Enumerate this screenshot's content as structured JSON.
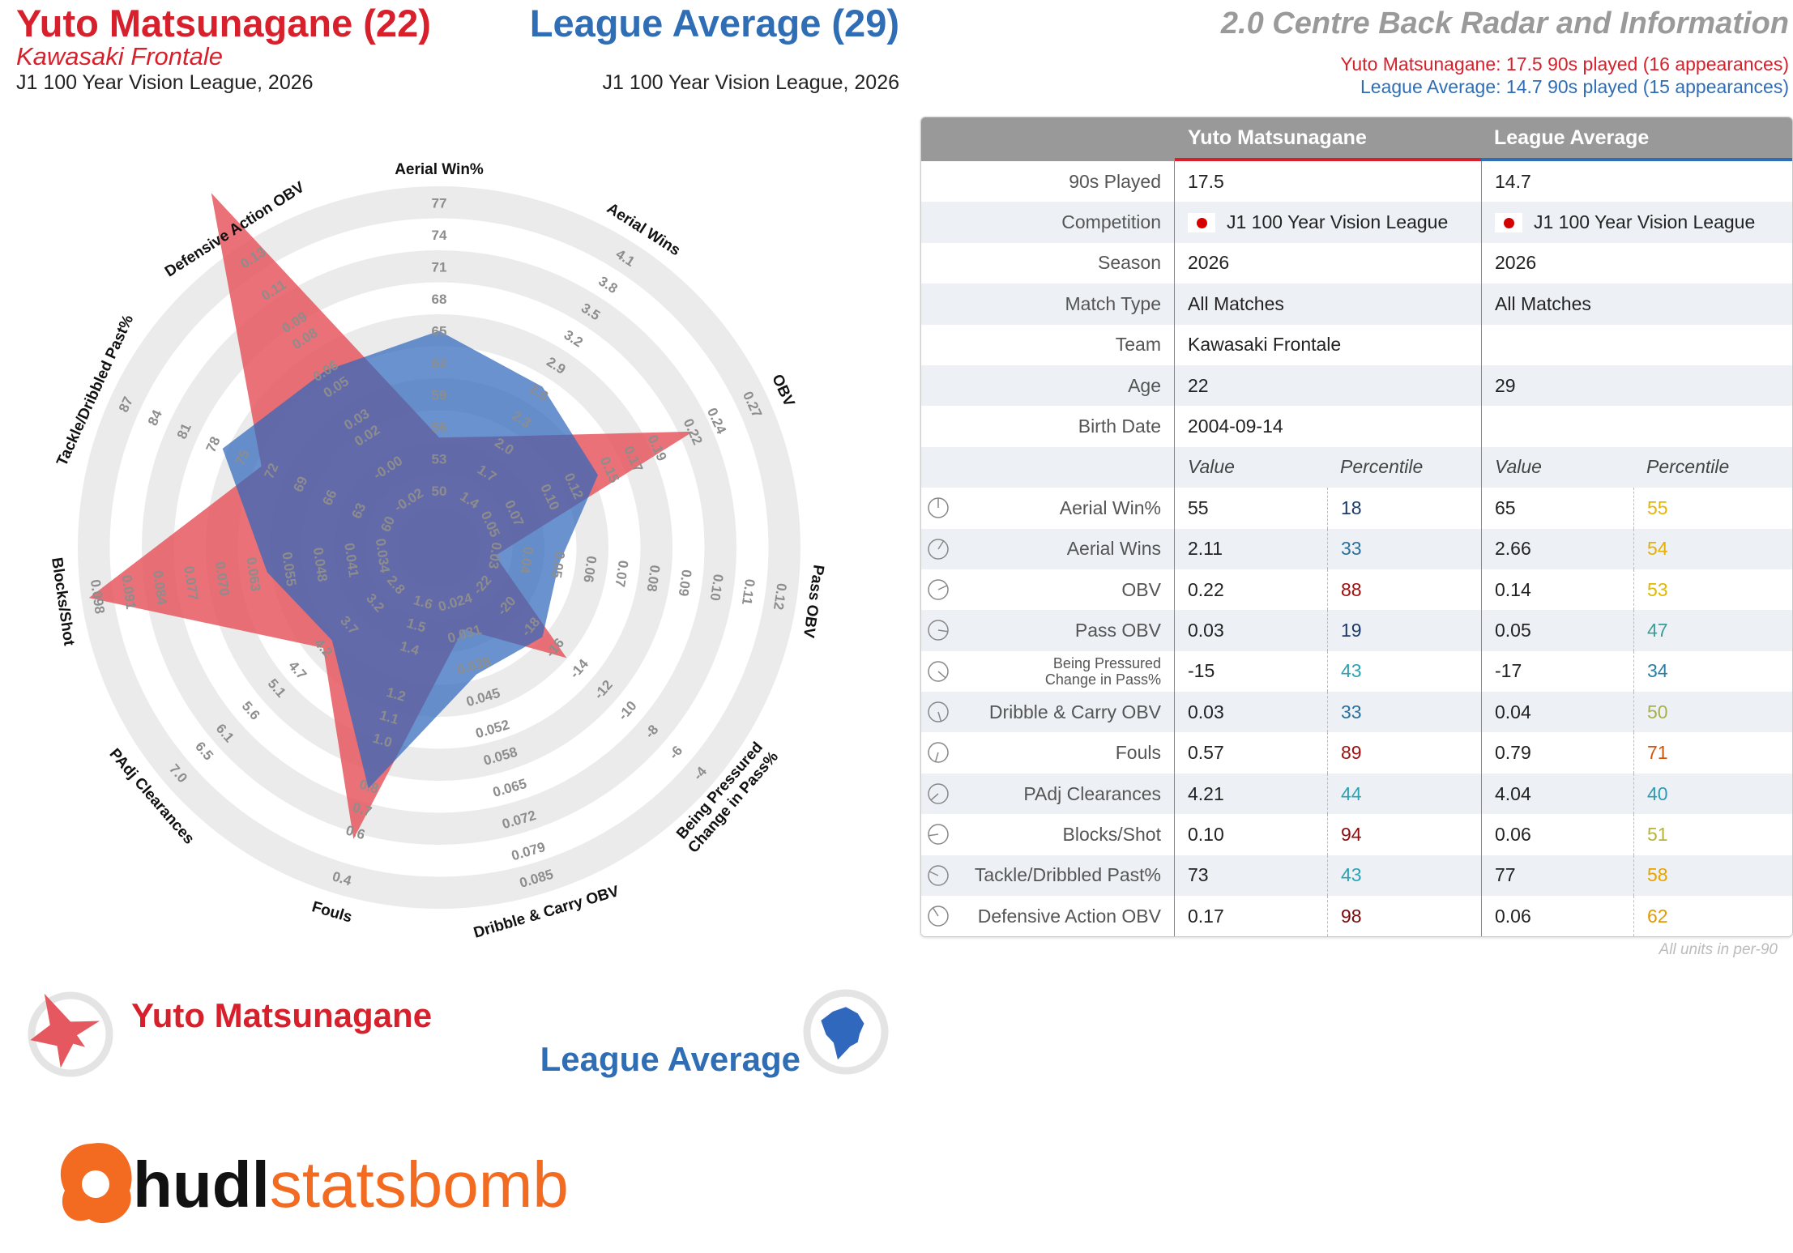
{
  "header": {
    "player_title": "Yuto Matsunagane (22)",
    "player_team": "Kawasaki Frontale",
    "player_league": "J1 100 Year Vision League, 2026",
    "league_title": "League Average (29)",
    "league_league": "J1 100 Year Vision League, 2026",
    "report_title": "2.0 Centre Back Radar and Information",
    "player_minutes": "Yuto Matsunagane: 17.5 90s played (16 appearances)",
    "league_minutes": "League Average: 14.7 90s played (15 appearances)",
    "player_color": "#d7202b",
    "league_color": "#2f6db5"
  },
  "chart_data": {
    "type": "radar",
    "categories": [
      "Aerial Win%",
      "Aerial Wins",
      "OBV",
      "Pass OBV",
      [
        "Being Pressured",
        "Change in Pass%"
      ],
      "Dribble & Carry OBV",
      "Fouls",
      "PAdj Clearances",
      "Blocks/Shot",
      "Tackle/Dribbled Past%",
      "Defensive Action OBV"
    ],
    "axis_ticks": [
      [
        50,
        53,
        56,
        59,
        62,
        65,
        68,
        71,
        74,
        77
      ],
      [
        1.4,
        1.7,
        {
          "value": 2,
          "label": "2.0"
        },
        2.3,
        2.6,
        2.9,
        3.2,
        3.5,
        3.8,
        4.1
      ],
      [
        0.05,
        0.07,
        {
          "value": 0.1,
          "label": "0.10"
        },
        0.12,
        0.15,
        0.17,
        0.19,
        0.22,
        0.24,
        0.27
      ],
      [
        0.03,
        0.04,
        0.05,
        0.06,
        0.07,
        0.08,
        0.09,
        {
          "value": 0.1,
          "label": "0.10"
        },
        0.11,
        0.12
      ],
      [
        -22,
        -20,
        -18,
        -16,
        -14,
        -12,
        -10,
        -8,
        -6,
        -4
      ],
      [
        0.024,
        0.031,
        0.038,
        0.045,
        0.052,
        0.058,
        0.065,
        0.072,
        0.079,
        0.085
      ],
      [
        1.6,
        1.5,
        1.4,
        1.2,
        1.1,
        {
          "value": 1,
          "label": "1.0"
        },
        0.8,
        0.7,
        0.6,
        0.4
      ],
      [
        2.8,
        3.2,
        3.7,
        4.2,
        4.7,
        5.1,
        5.6,
        6.1,
        6.5,
        {
          "value": 7,
          "label": "7.0"
        }
      ],
      [
        0.034,
        0.041,
        0.048,
        0.055,
        0.063,
        {
          "value": 0.07,
          "label": "0.070"
        },
        0.077,
        0.084,
        0.091,
        0.098
      ],
      [
        60,
        63,
        66,
        69,
        72,
        75,
        78,
        81,
        84,
        87
      ],
      [
        -0.02,
        {
          "value": 0,
          "label": "-0.00"
        },
        0.02,
        0.03,
        0.05,
        0.06,
        0.08,
        0.09,
        0.11,
        0.13
      ]
    ],
    "series": [
      {
        "name": "Yuto Matsunagane",
        "color": "#e5585f",
        "values": [
          55,
          2.11,
          0.22,
          0.03,
          -15,
          0.03,
          0.57,
          4.21,
          0.1,
          73,
          0.17
        ]
      },
      {
        "name": "League Average",
        "color": "#2f68bd",
        "values": [
          65,
          2.66,
          0.14,
          0.05,
          -17,
          0.04,
          0.79,
          4.04,
          0.06,
          77,
          0.06
        ]
      }
    ]
  },
  "table": {
    "info_rows": [
      {
        "label": "90s Played",
        "player": "17.5",
        "league": "14.7"
      },
      {
        "label": "Competition",
        "player": "J1 100 Year Vision League",
        "league": "J1 100 Year Vision League",
        "flag": true
      },
      {
        "label": "Season",
        "player": "2026",
        "league": "2026"
      },
      {
        "label": "Match Type",
        "player": "All Matches",
        "league": "All Matches"
      },
      {
        "label": "Team",
        "player": "Kawasaki Frontale"
      },
      {
        "label": "Age",
        "player": "22",
        "league": "29"
      },
      {
        "label": "Birth Date",
        "player": "2004-09-14"
      }
    ],
    "subheader": [
      "Value",
      "Percentile"
    ],
    "metric_rows": [
      {
        "player": "55",
        "player_pct": "18",
        "player_pct_color": "#1b3a6b",
        "league": "65",
        "league_pct": "55",
        "league_pct_color": "#e8b400"
      },
      {
        "player": "2.11",
        "player_pct": "33",
        "player_pct_color": "#2a6f9e",
        "league": "2.66",
        "league_pct": "54",
        "league_pct_color": "#e6b000"
      },
      {
        "player": "0.22",
        "player_pct": "88",
        "player_pct_color": "#a00d0d",
        "league": "0.14",
        "league_pct": "53",
        "league_pct_color": "#e0b800"
      },
      {
        "player": "0.03",
        "player_pct": "19",
        "player_pct_color": "#1b3a6b",
        "league": "0.05",
        "league_pct": "47",
        "league_pct_color": "#3a9e98"
      },
      {
        "player": "-15",
        "player_pct": "43",
        "player_pct_color": "#2aa3b5",
        "league": "-17",
        "league_pct": "34",
        "league_pct_color": "#2a7fa3"
      },
      {
        "player": "0.03",
        "player_pct": "33",
        "player_pct_color": "#2a6f9e",
        "league": "0.04",
        "league_pct": "50",
        "league_pct_color": "#a8b04a"
      },
      {
        "player": "0.57",
        "player_pct": "89",
        "player_pct_color": "#9e0f0f",
        "league": "0.79",
        "league_pct": "71",
        "league_pct_color": "#d2550f"
      },
      {
        "player": "4.21",
        "player_pct": "44",
        "player_pct_color": "#2aa3b5",
        "league": "4.04",
        "league_pct": "40",
        "league_pct_color": "#2a9db5"
      },
      {
        "player": "0.10",
        "player_pct": "94",
        "player_pct_color": "#8f0a0a",
        "league": "0.06",
        "league_pct": "51",
        "league_pct_color": "#b8b43a"
      },
      {
        "player": "73",
        "player_pct": "43",
        "player_pct_color": "#2aa3b5",
        "league": "77",
        "league_pct": "58",
        "league_pct_color": "#e8a300"
      },
      {
        "player": "0.17",
        "player_pct": "98",
        "player_pct_color": "#7a0808",
        "league": "0.06",
        "league_pct": "62",
        "league_pct_color": "#e39a00"
      }
    ],
    "footnote": "All units in per-90"
  },
  "logo": {
    "hudl": "hudl",
    "statsbomb": "statsbomb"
  }
}
